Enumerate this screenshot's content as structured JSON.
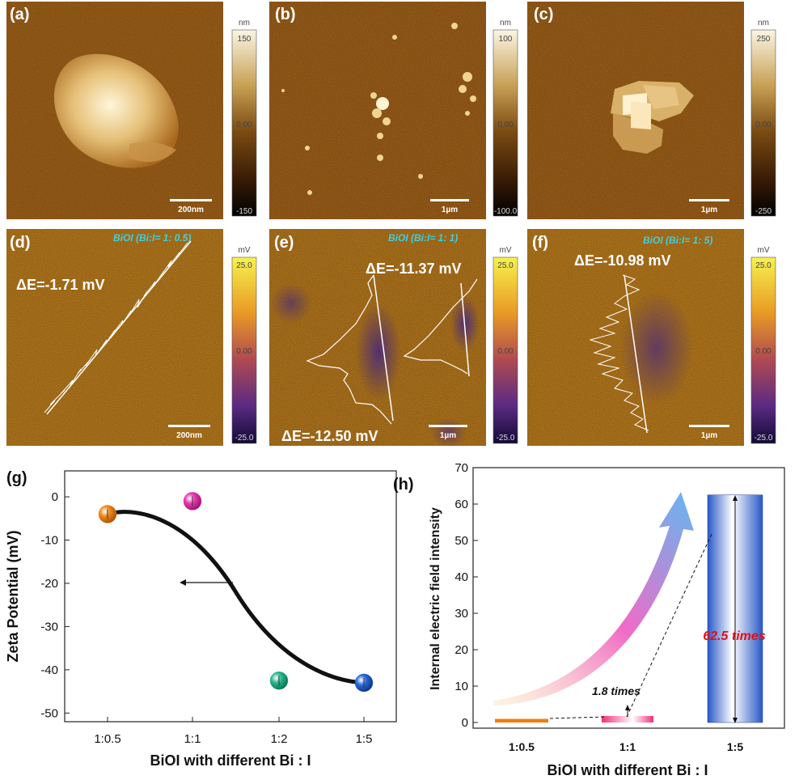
{
  "afm_panels": [
    {
      "label": "(a)",
      "scale_bar": "200nm",
      "colorbar": {
        "unit": "nm",
        "max": "150",
        "mid": "0.00",
        "min": "-150"
      }
    },
    {
      "label": "(b)",
      "scale_bar": "1µm",
      "colorbar": {
        "unit": "nm",
        "max": "100",
        "mid": "0.00",
        "min": "-100.0"
      }
    },
    {
      "label": "(c)",
      "scale_bar": "1µm",
      "colorbar": {
        "unit": "nm",
        "max": "250",
        "mid": "0.00",
        "min": "-250"
      }
    }
  ],
  "kpfm_panels": [
    {
      "label": "(d)",
      "sample": "BiOI (Bi:I= 1: 0.5)",
      "delta_e": [
        "ΔE=-1.71 mV"
      ],
      "scale_bar": "200nm",
      "colorbar": {
        "unit": "mV",
        "max": "25.0",
        "mid": "0.00",
        "min": "-25.0"
      }
    },
    {
      "label": "(e)",
      "sample": "BiOI (Bi:I= 1: 1)",
      "delta_e": [
        "ΔE=-11.37 mV",
        "ΔE=-12.50 mV"
      ],
      "scale_bar": "1µm",
      "colorbar": {
        "unit": "mV",
        "max": "25.0",
        "mid": "0.00",
        "min": "-25.0"
      }
    },
    {
      "label": "(f)",
      "sample": "BiOI (Bi:I= 1: 5)",
      "delta_e": [
        "ΔE=-10.98 mV"
      ],
      "scale_bar": "1µm",
      "colorbar": {
        "unit": "mV",
        "max": "25.0",
        "mid": "0.00",
        "min": "-25.0"
      }
    }
  ],
  "chart_data": [
    {
      "label": "(g)",
      "type": "scatter",
      "categories": [
        "1:0.5",
        "1:1",
        "1:2",
        "1:5"
      ],
      "values": [
        -4,
        -1,
        -42.5,
        -43
      ],
      "point_colors": [
        "#f08a1e",
        "#e83ab0",
        "#2ab890",
        "#2a6ad8"
      ],
      "trend_line": [
        [
          0,
          -4
        ],
        [
          0.4,
          -3
        ],
        [
          1,
          -6
        ],
        [
          2,
          -38
        ],
        [
          2.6,
          -42.6
        ],
        [
          3,
          -43
        ]
      ],
      "xlabel": "BiOI with different Bi : I",
      "ylabel": "Zeta Potential (mV)",
      "ylim": [
        -52,
        6
      ],
      "yticks": [
        0,
        -10,
        -20,
        -30,
        -40,
        -50
      ],
      "arrow": "left"
    },
    {
      "label": "(h)",
      "type": "bar",
      "categories": [
        "1:0.5",
        "1:1",
        "1:5"
      ],
      "values": [
        1,
        1.8,
        62.5
      ],
      "bar_colors": [
        "#f07d10",
        "#f0307a",
        "#2858c8"
      ],
      "xlabel": "BiOI with different Bi : I",
      "ylabel": "Internal electric field intensity",
      "ylim": [
        -1,
        70
      ],
      "yticks": [
        0,
        10,
        20,
        30,
        40,
        50,
        60,
        70
      ],
      "annotations": [
        "1.8 times",
        "62.5 times"
      ]
    }
  ]
}
